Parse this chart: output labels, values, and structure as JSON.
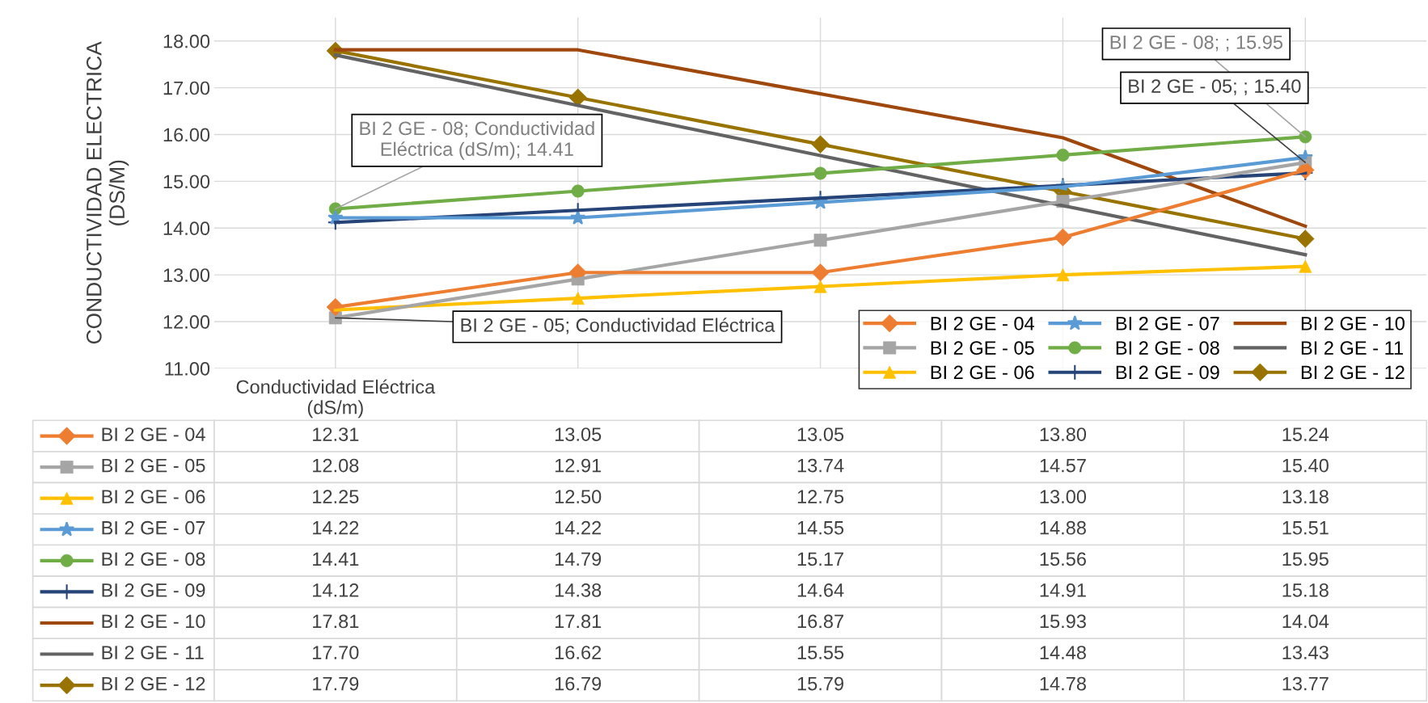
{
  "chart_data": {
    "type": "line",
    "ylabel": "CONDUCTIVIDAD ELECTRICA\n(DS/M)",
    "categories": [
      "Conductividad Eléctrica\n(dS/m)",
      null,
      null,
      null,
      null
    ],
    "ylim": [
      11,
      18.5
    ],
    "yticks": [
      {
        "value": 11,
        "label": "11.00"
      },
      {
        "value": 12,
        "label": "12.00"
      },
      {
        "value": 13,
        "label": "13.00"
      },
      {
        "value": 14,
        "label": "14.00"
      },
      {
        "value": 15,
        "label": "15.00"
      },
      {
        "value": 16,
        "label": "16.00"
      },
      {
        "value": 17,
        "label": "17.00"
      },
      {
        "value": 18,
        "label": "18.00"
      }
    ],
    "grid": true,
    "legend": "bottom right",
    "series": [
      {
        "name": "BI 2 GE - 04",
        "color": "#ed7d31",
        "marker": "diamond",
        "values": [
          12.31,
          13.05,
          13.05,
          13.8,
          15.24
        ],
        "value_labels": [
          "12.31",
          "13.05",
          "13.05",
          "13.80",
          "15.24"
        ]
      },
      {
        "name": "BI 2 GE - 05",
        "color": "#a5a5a5",
        "marker": "square",
        "values": [
          12.08,
          12.91,
          13.74,
          14.57,
          15.4
        ],
        "value_labels": [
          "12.08",
          "12.91",
          "13.74",
          "14.57",
          "15.40"
        ]
      },
      {
        "name": "BI 2 GE - 06",
        "color": "#ffc000",
        "marker": "triangle",
        "values": [
          12.25,
          12.5,
          12.75,
          13.0,
          13.18
        ],
        "value_labels": [
          "12.25",
          "12.50",
          "12.75",
          "13.00",
          "13.18"
        ]
      },
      {
        "name": "BI 2 GE - 07",
        "color": "#5b9bd5",
        "marker": "star",
        "values": [
          14.22,
          14.22,
          14.55,
          14.88,
          15.51
        ],
        "value_labels": [
          "14.22",
          "14.22",
          "14.55",
          "14.88",
          "15.51"
        ]
      },
      {
        "name": "BI 2 GE - 08",
        "color": "#70ad47",
        "marker": "circle",
        "values": [
          14.41,
          14.79,
          15.17,
          15.56,
          15.95
        ],
        "value_labels": [
          "14.41",
          "14.79",
          "15.17",
          "15.56",
          "15.95"
        ]
      },
      {
        "name": "BI 2 GE - 09",
        "color": "#264478",
        "marker": "cross",
        "values": [
          14.12,
          14.38,
          14.64,
          14.91,
          15.18
        ],
        "value_labels": [
          "14.12",
          "14.38",
          "14.64",
          "14.91",
          "15.18"
        ]
      },
      {
        "name": "BI 2 GE - 10",
        "color": "#9e480e",
        "marker": "none",
        "values": [
          17.81,
          17.81,
          16.87,
          15.93,
          14.04
        ],
        "value_labels": [
          "17.81",
          "17.81",
          "16.87",
          "15.93",
          "14.04"
        ]
      },
      {
        "name": "BI 2 GE - 11",
        "color": "#636363",
        "marker": "none",
        "values": [
          17.7,
          16.62,
          15.55,
          14.48,
          13.43
        ],
        "value_labels": [
          "17.70",
          "16.62",
          "15.55",
          "14.48",
          "13.43"
        ]
      },
      {
        "name": "BI 2 GE - 12",
        "color": "#997300",
        "marker": "diamond",
        "values": [
          17.79,
          16.79,
          15.79,
          14.78,
          13.77
        ],
        "value_labels": [
          "17.79",
          "16.79",
          "15.79",
          "14.78",
          "13.77"
        ]
      }
    ],
    "annotations": [
      {
        "text": "BI 2 GE - 08; Conductividad\nEléctrica (dS/m); 14.41",
        "x": "Conductividad Eléctrica\n(dS/m)",
        "y": 14.41
      },
      {
        "text": "BI 2 GE - 05; Conductividad Eléctrica",
        "x": "Conductividad Eléctrica\n(dS/m)",
        "y": 12.08
      },
      "BI 2 GE - 08; ; 15.95",
      "BI 2 GE - 05; ; 15.40"
    ]
  }
}
